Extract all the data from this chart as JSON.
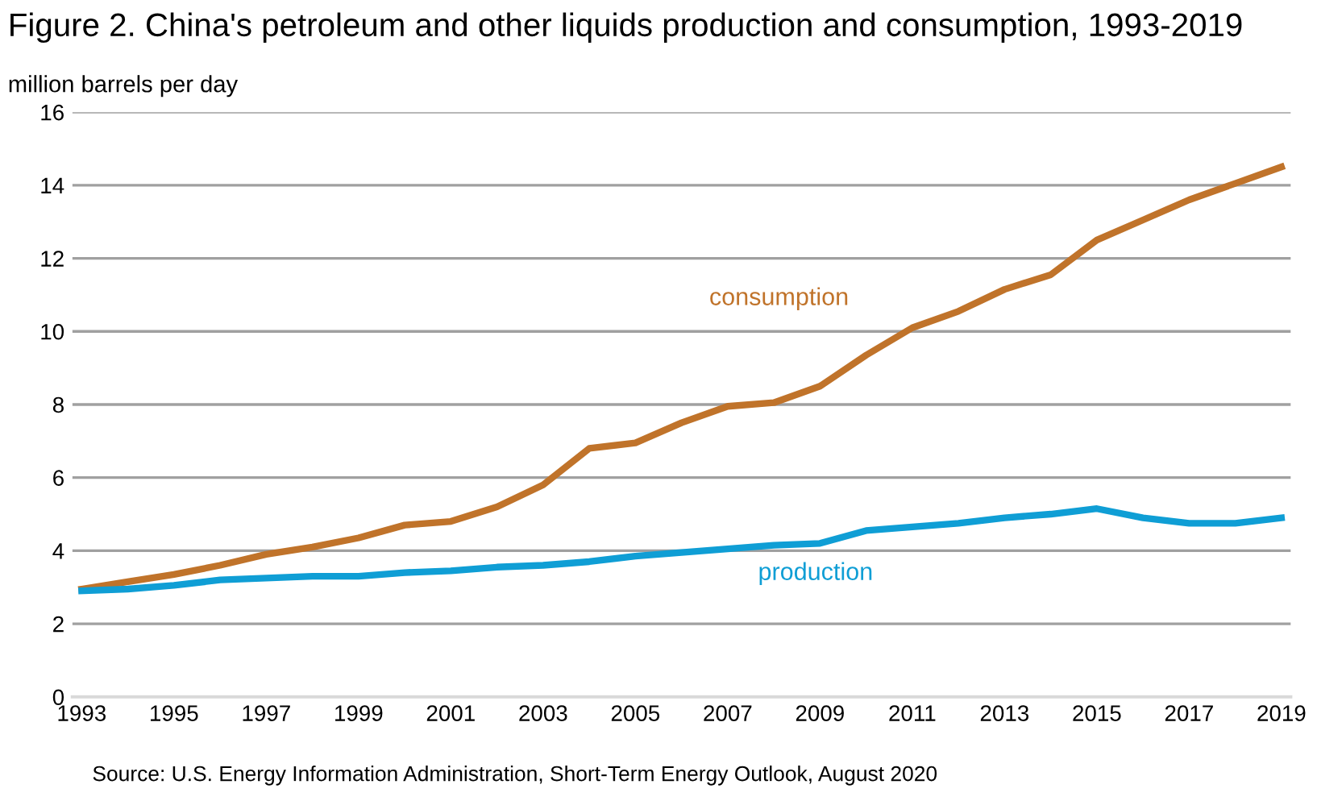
{
  "chart_data": {
    "type": "line",
    "title": "Figure 2. China's petroleum and other liquids production and consumption, 1993-2019",
    "ylabel": "million barrels per day",
    "x": [
      1993,
      1994,
      1995,
      1996,
      1997,
      1998,
      1999,
      2000,
      2001,
      2002,
      2003,
      2004,
      2005,
      2006,
      2007,
      2008,
      2009,
      2010,
      2011,
      2012,
      2013,
      2014,
      2015,
      2016,
      2017,
      2018,
      2019
    ],
    "series": [
      {
        "name": "consumption",
        "color": "#c0732a",
        "values": [
          2.95,
          3.15,
          3.35,
          3.6,
          3.9,
          4.1,
          4.35,
          4.7,
          4.8,
          5.2,
          5.8,
          6.8,
          6.95,
          7.5,
          7.95,
          8.05,
          8.5,
          9.35,
          10.1,
          10.55,
          11.15,
          11.55,
          12.5,
          13.05,
          13.6,
          14.05,
          14.5
        ]
      },
      {
        "name": "production",
        "color": "#0f9ed5",
        "values": [
          2.9,
          2.95,
          3.05,
          3.2,
          3.25,
          3.3,
          3.3,
          3.4,
          3.45,
          3.55,
          3.6,
          3.7,
          3.85,
          3.95,
          4.05,
          4.15,
          4.2,
          4.55,
          4.65,
          4.75,
          4.9,
          5.0,
          5.15,
          4.9,
          4.75,
          4.75,
          4.9
        ]
      }
    ],
    "xlim": [
      1992.8,
      2019.2
    ],
    "xticks": [
      1993,
      1995,
      1997,
      1999,
      2001,
      2003,
      2005,
      2007,
      2009,
      2011,
      2013,
      2015,
      2017,
      2019
    ],
    "ylim": [
      0,
      16
    ],
    "yticks": [
      0,
      2,
      4,
      6,
      8,
      10,
      12,
      14,
      16
    ],
    "grid": "y",
    "legend": false,
    "marker": "none",
    "line_style": "solid",
    "annotations": [
      "Source: U.S. Energy Information Administration, Short-Term Energy Outlook, August 2020"
    ]
  }
}
